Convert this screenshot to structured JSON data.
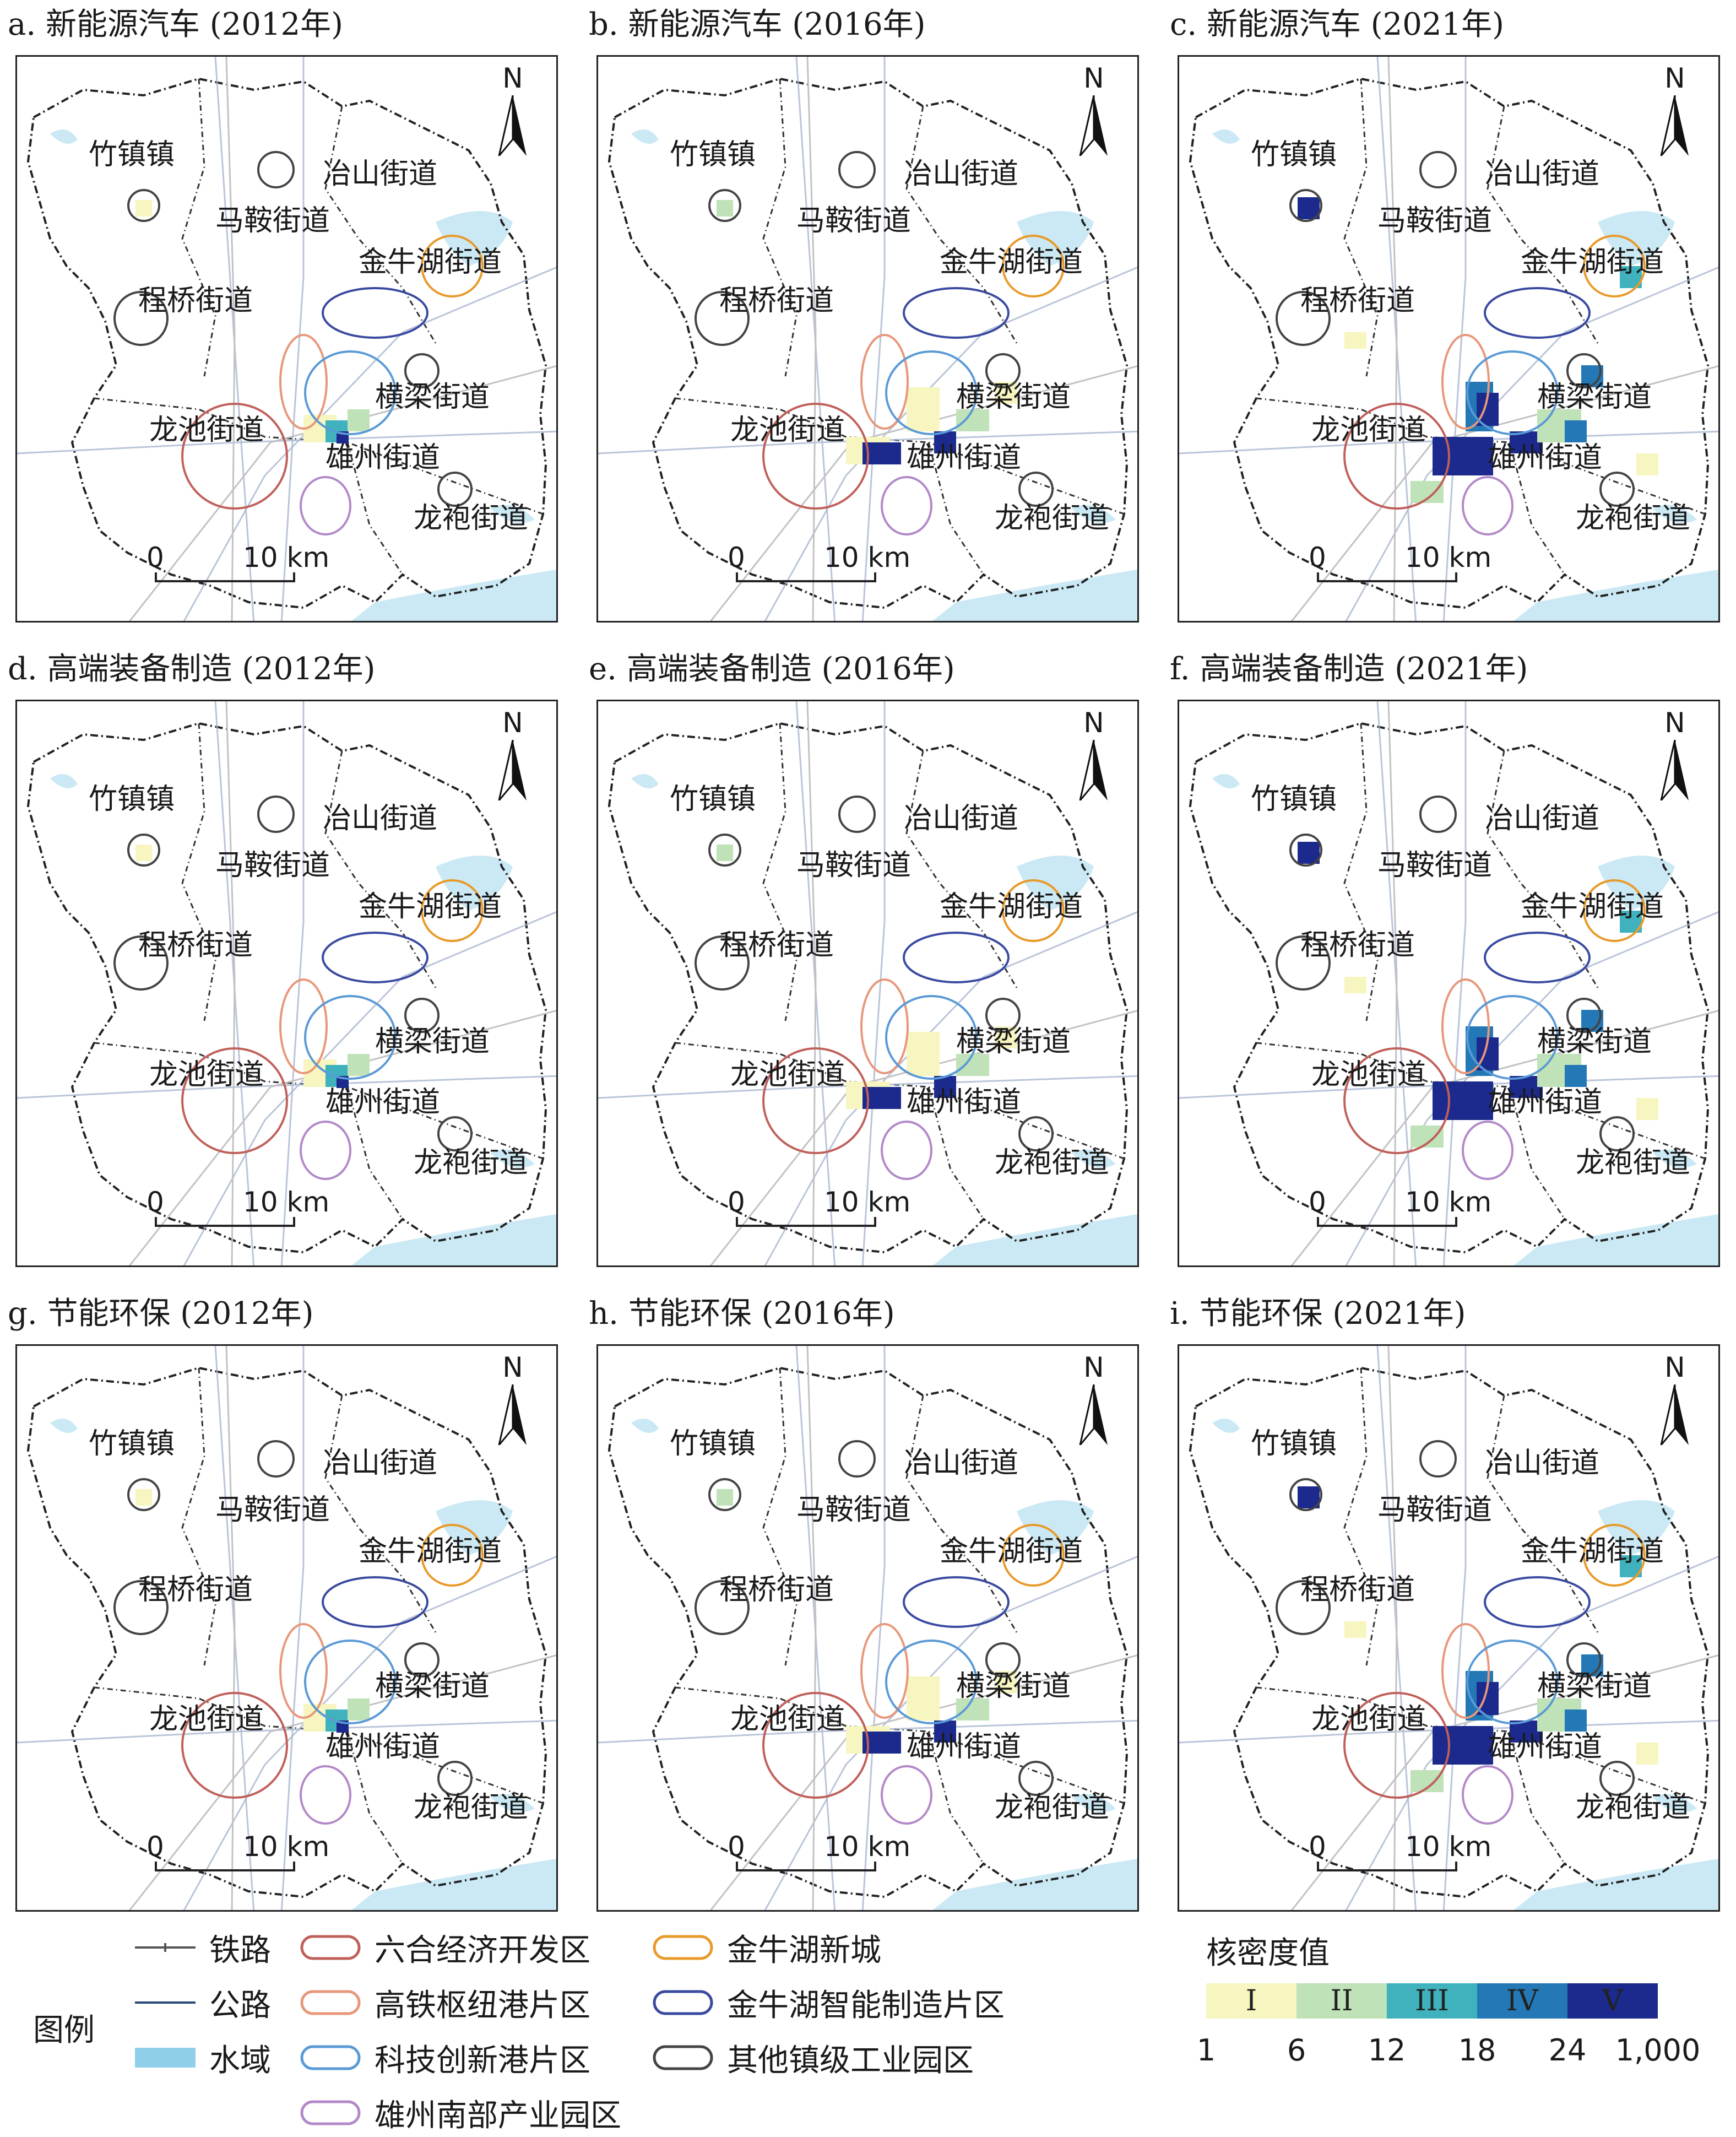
{
  "panels": [
    {
      "title": "a. 新能源汽车 (2012年)",
      "level": 1
    },
    {
      "title": "b. 新能源汽车 (2016年)",
      "level": 2
    },
    {
      "title": "c. 新能源汽车 (2021年)",
      "level": 3
    },
    {
      "title": "d. 高端装备制造 (2012年)",
      "level": 1
    },
    {
      "title": "e. 高端装备制造 (2016年)",
      "level": 2
    },
    {
      "title": "f. 高端装备制造 (2021年)",
      "level": 3
    },
    {
      "title": "g. 节能环保 (2012年)",
      "level": 1
    },
    {
      "title": "h. 节能环保 (2016年)",
      "level": 2
    },
    {
      "title": "i. 节能环保 (2021年)",
      "level": 3
    }
  ],
  "places": [
    "竹镇镇",
    "冶山街道",
    "马鞍街道",
    "金牛湖街道",
    "程桥街道",
    "横梁街道",
    "龙池街道",
    "雄州街道",
    "龙袍街道"
  ],
  "north_label": "N",
  "scale": {
    "zero": "0",
    "distance": "10 km"
  },
  "legend": {
    "title": "图例",
    "items": [
      {
        "label": "铁路",
        "kind": "railway",
        "color": "#555555"
      },
      {
        "label": "公路",
        "kind": "road",
        "color": "#2a4a7a"
      },
      {
        "label": "水域",
        "kind": "water",
        "color": "#8fd0e8"
      },
      {
        "label": "六合经济开发区",
        "kind": "ellipse",
        "color": "#c0605a"
      },
      {
        "label": "高铁枢纽港片区",
        "kind": "ellipse",
        "color": "#e8977a"
      },
      {
        "label": "科技创新港片区",
        "kind": "ellipse",
        "color": "#5a9ad6"
      },
      {
        "label": "雄州南部产业园区",
        "kind": "ellipse",
        "color": "#b388c8"
      },
      {
        "label": "金牛湖新城",
        "kind": "ellipse",
        "color": "#e89a2a"
      },
      {
        "label": "金牛湖智能制造片区",
        "kind": "ellipse",
        "color": "#3a4aa0"
      },
      {
        "label": "其他镇级工业园区",
        "kind": "ellipse",
        "color": "#444444"
      }
    ]
  },
  "density": {
    "title": "核密度值",
    "classes": [
      {
        "label": "I",
        "color": "#f7f5c0"
      },
      {
        "label": "II",
        "color": "#bfe2b8"
      },
      {
        "label": "III",
        "color": "#3fb2bd"
      },
      {
        "label": "IV",
        "color": "#2378b5"
      },
      {
        "label": "V",
        "color": "#1b2a8c"
      }
    ],
    "ticks": [
      "1",
      "6",
      "12",
      "18",
      "24",
      "1,000"
    ]
  }
}
